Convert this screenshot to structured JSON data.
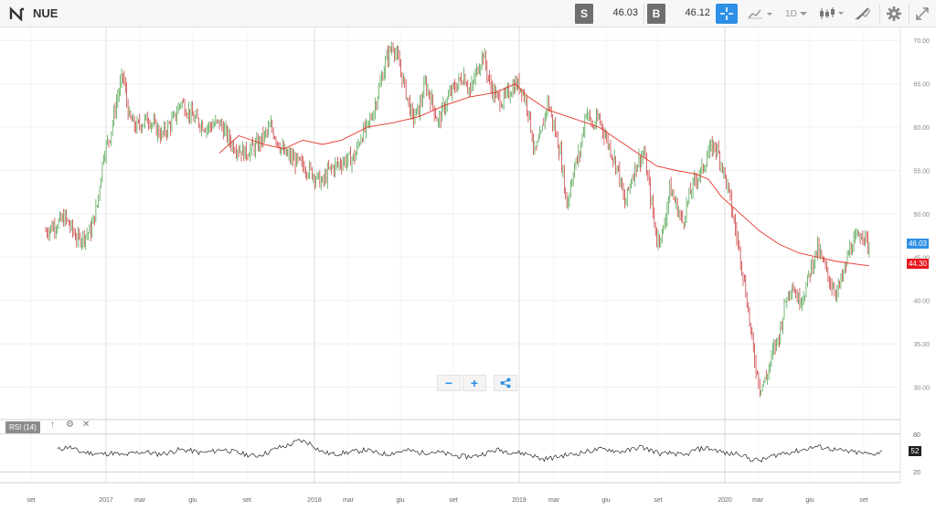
{
  "toolbar": {
    "symbol": "NUE",
    "sell_label": "S",
    "sell_price": "46.03",
    "buy_label": "B",
    "buy_price": "46.12",
    "timeframe": "1D",
    "icons": [
      "logo-icon",
      "crosshair-icon",
      "chart-type-icon",
      "timeframe-dropdown",
      "candlestick-icon",
      "draw-icon",
      "gear-icon",
      "fullscreen-icon"
    ],
    "accent_color": "#2d8fe6"
  },
  "zoom": {
    "minus": "−",
    "plus": "+"
  },
  "rsi": {
    "label": "RSI (14)",
    "current": "52",
    "upper": "80",
    "lower": "20"
  },
  "price_tags": {
    "last": "46.03",
    "ma": "44.30"
  },
  "chart_data": {
    "type": "candlestick",
    "y_ticks": [
      "70.00",
      "65.00",
      "60.00",
      "55.00",
      "50.00",
      "45.00",
      "40.00",
      "35.00",
      "30.00"
    ],
    "ylim": [
      27,
      71.5
    ],
    "x_ticks": [
      "set",
      "2017",
      "mar",
      "giu",
      "set",
      "2018",
      "mar",
      "giu",
      "set",
      "2019",
      "mar",
      "giu",
      "set",
      "2020",
      "mar",
      "giu",
      "set"
    ],
    "close_path": [
      [
        0,
        48
      ],
      [
        3,
        49.5
      ],
      [
        5,
        47
      ],
      [
        7,
        48
      ],
      [
        8,
        51
      ],
      [
        9,
        57
      ],
      [
        10,
        59
      ],
      [
        11,
        63
      ],
      [
        12,
        66
      ],
      [
        13,
        61
      ],
      [
        14,
        60
      ],
      [
        16,
        61
      ],
      [
        18,
        59
      ],
      [
        20,
        61
      ],
      [
        21,
        63
      ],
      [
        23,
        61
      ],
      [
        25,
        60
      ],
      [
        27,
        60.5
      ],
      [
        29,
        58
      ],
      [
        31,
        57
      ],
      [
        33,
        58
      ],
      [
        35,
        60
      ],
      [
        37,
        57
      ],
      [
        39,
        56
      ],
      [
        41,
        55
      ],
      [
        43,
        53.5
      ],
      [
        44,
        55
      ],
      [
        46,
        56
      ],
      [
        48,
        56.5
      ],
      [
        49,
        59
      ],
      [
        50,
        60
      ],
      [
        51,
        62
      ],
      [
        52,
        65
      ],
      [
        53,
        68
      ],
      [
        54,
        69.5
      ],
      [
        55,
        67
      ],
      [
        57,
        61
      ],
      [
        58,
        62
      ],
      [
        59,
        65
      ],
      [
        60,
        63
      ],
      [
        61,
        60.5
      ],
      [
        62,
        62.5
      ],
      [
        63,
        64
      ],
      [
        65,
        66
      ],
      [
        66,
        64
      ],
      [
        67,
        66.5
      ],
      [
        68,
        68.5
      ],
      [
        69,
        65
      ],
      [
        70,
        63.5
      ],
      [
        71,
        63
      ],
      [
        72,
        64
      ],
      [
        73,
        65
      ],
      [
        74,
        64.5
      ],
      [
        75,
        62
      ],
      [
        76,
        57
      ],
      [
        77,
        59
      ],
      [
        78,
        63
      ],
      [
        79,
        60
      ],
      [
        80,
        57
      ],
      [
        81,
        51
      ],
      [
        82,
        55
      ],
      [
        83,
        57
      ],
      [
        84,
        62
      ],
      [
        85,
        60
      ],
      [
        86,
        61
      ],
      [
        87,
        59
      ],
      [
        88,
        57
      ],
      [
        89,
        55
      ],
      [
        90,
        51
      ],
      [
        91,
        54
      ],
      [
        92,
        56
      ],
      [
        93,
        57
      ],
      [
        94,
        52
      ],
      [
        95,
        47
      ],
      [
        96,
        48
      ],
      [
        97,
        53
      ],
      [
        98,
        51
      ],
      [
        99,
        49
      ],
      [
        100,
        52
      ],
      [
        101,
        54
      ],
      [
        102,
        55
      ],
      [
        103,
        57
      ],
      [
        104,
        58
      ],
      [
        105,
        56
      ],
      [
        106,
        53
      ],
      [
        107,
        49
      ],
      [
        108,
        45
      ],
      [
        109,
        40
      ],
      [
        110,
        34
      ],
      [
        111,
        30
      ],
      [
        112,
        31
      ],
      [
        113,
        34
      ],
      [
        114,
        36
      ],
      [
        115,
        40
      ],
      [
        116,
        42
      ],
      [
        117,
        40
      ],
      [
        118,
        41
      ],
      [
        119,
        44
      ],
      [
        120,
        46
      ],
      [
        121,
        44
      ],
      [
        122,
        42
      ],
      [
        123,
        41
      ],
      [
        124,
        43
      ],
      [
        125,
        46
      ],
      [
        126,
        47
      ],
      [
        127,
        48
      ],
      [
        128,
        46
      ]
    ],
    "ma_path": [
      [
        27,
        57
      ],
      [
        30,
        59
      ],
      [
        34,
        58
      ],
      [
        37,
        57.5
      ],
      [
        40,
        58.5
      ],
      [
        43,
        58
      ],
      [
        46,
        58.5
      ],
      [
        50,
        60
      ],
      [
        54,
        60.5
      ],
      [
        58,
        61.2
      ],
      [
        62,
        62.5
      ],
      [
        66,
        63.5
      ],
      [
        70,
        64
      ],
      [
        73,
        65
      ],
      [
        75,
        63.5
      ],
      [
        78,
        62
      ],
      [
        82,
        61
      ],
      [
        86,
        60
      ],
      [
        89,
        58.5
      ],
      [
        92,
        57
      ],
      [
        95,
        55.5
      ],
      [
        98,
        55
      ],
      [
        101,
        54.6
      ],
      [
        103,
        54
      ],
      [
        105,
        52
      ],
      [
        108,
        50
      ],
      [
        111,
        48
      ],
      [
        114,
        46.5
      ],
      [
        117,
        45.5
      ],
      [
        120,
        45
      ],
      [
        123,
        44.5
      ],
      [
        126,
        44.2
      ],
      [
        128,
        44
      ]
    ],
    "rsi_values": [
      55,
      60,
      52,
      50,
      48,
      50,
      46,
      50,
      52,
      48,
      50,
      55,
      54,
      50,
      52,
      56,
      52,
      48,
      45,
      50,
      58,
      62,
      70,
      65,
      52,
      48,
      50,
      52,
      55,
      50,
      48,
      52,
      54,
      50,
      52,
      50,
      46,
      44,
      45,
      50,
      55,
      52,
      50,
      48,
      40,
      42,
      46,
      48,
      52,
      55,
      56,
      52,
      54,
      60,
      54,
      48,
      50,
      45,
      55,
      58,
      54,
      48,
      50,
      40,
      38,
      45,
      50,
      52,
      56,
      60,
      58,
      54,
      52,
      50,
      48,
      52
    ]
  }
}
